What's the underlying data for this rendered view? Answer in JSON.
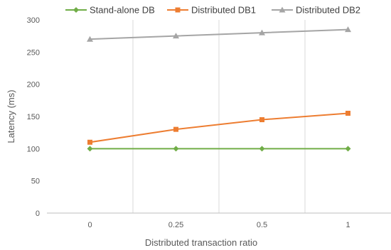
{
  "chart_data": {
    "type": "line",
    "categories": [
      "0",
      "0.25",
      "0.5",
      "1"
    ],
    "series": [
      {
        "name": "Stand-alone DB",
        "values": [
          100,
          100,
          100,
          100
        ],
        "color": "#70ad47",
        "marker": "diamond"
      },
      {
        "name": "Distributed DB1",
        "values": [
          110,
          130,
          145,
          155
        ],
        "color": "#ed7d31",
        "marker": "square"
      },
      {
        "name": "Distributed DB2",
        "values": [
          270,
          275,
          280,
          285
        ],
        "color": "#a5a5a5",
        "marker": "triangle"
      }
    ],
    "xlabel": "Distributed transaction ratio",
    "ylabel": "Latency (ms)",
    "ylim": [
      0,
      300
    ],
    "yticks": [
      0,
      50,
      100,
      150,
      200,
      250,
      300
    ],
    "grid": "vertical",
    "legend": "top"
  }
}
